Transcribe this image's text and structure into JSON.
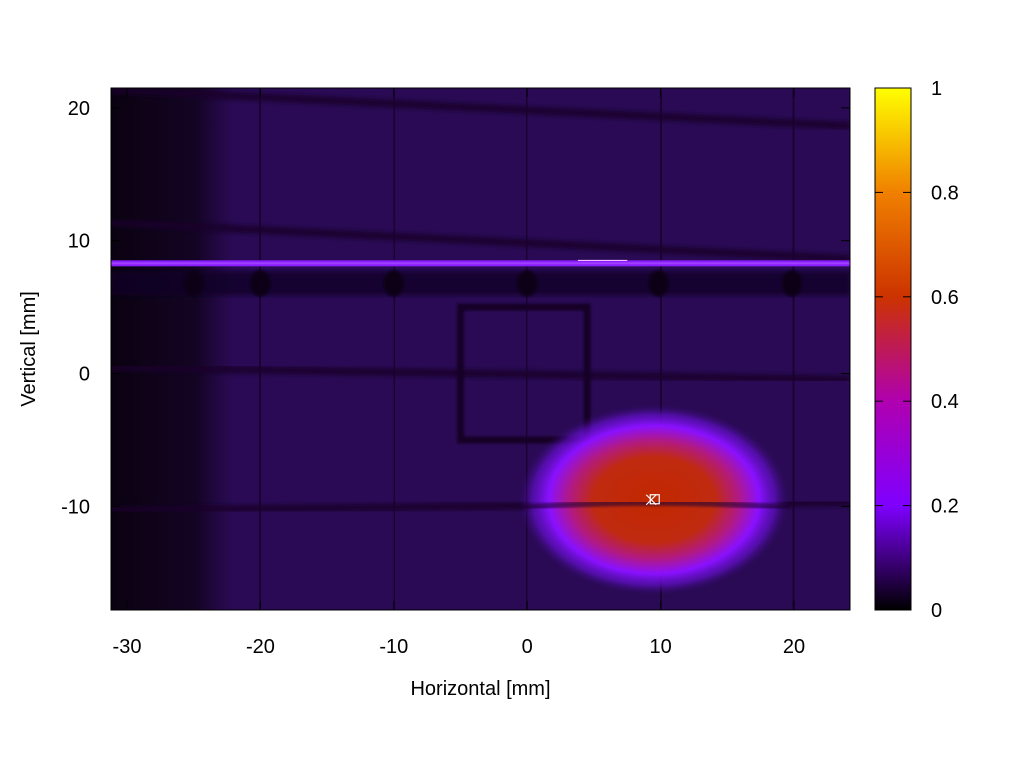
{
  "chart_data": {
    "type": "heatmap",
    "title": "",
    "xlabel": "Horizontal [mm]",
    "ylabel": "Vertical [mm]",
    "xlim": [
      -31.2,
      24.2
    ],
    "ylim": [
      -17.8,
      21.5
    ],
    "xticks": [
      {
        "value": -30,
        "label": "-30"
      },
      {
        "value": -20,
        "label": "-20"
      },
      {
        "value": -10,
        "label": "-10"
      },
      {
        "value": 0,
        "label": "0"
      },
      {
        "value": 10,
        "label": "10"
      },
      {
        "value": 20,
        "label": "20"
      }
    ],
    "yticks": [
      {
        "value": -10,
        "label": "-10"
      },
      {
        "value": 0,
        "label": "0"
      },
      {
        "value": 10,
        "label": "10"
      },
      {
        "value": 20,
        "label": "20"
      }
    ],
    "colorbar": {
      "range": [
        0,
        1
      ],
      "ticks": [
        {
          "value": 0,
          "label": "0"
        },
        {
          "value": 0.2,
          "label": "0.2"
        },
        {
          "value": 0.4,
          "label": "0.4"
        },
        {
          "value": 0.6,
          "label": "0.6"
        },
        {
          "value": 0.8,
          "label": "0.8"
        },
        {
          "value": 1,
          "label": "1"
        }
      ],
      "stops": [
        {
          "value": 0,
          "color": "#000000"
        },
        {
          "value": 0.2,
          "color": "#7f00ff"
        },
        {
          "value": 0.4,
          "color": "#b000b0"
        },
        {
          "value": 0.6,
          "color": "#cc3300"
        },
        {
          "value": 0.8,
          "color": "#f08000"
        },
        {
          "value": 1,
          "color": "#ffff00"
        }
      ]
    },
    "background_level": 0.1,
    "dark_left_region": {
      "x_max": -23.5,
      "level": 0.03
    },
    "beam_spot": {
      "x": 9.5,
      "y": -9.5,
      "peak": 0.55
    },
    "marker": {
      "x": 9.3,
      "y": -9.5
    },
    "bright_line": {
      "y": 8.3,
      "level": 0.22
    },
    "grid_lines": {
      "vertical_x": [
        -20,
        -10,
        0,
        10,
        20
      ],
      "horizontal_y": [
        20,
        10,
        0,
        -10
      ]
    },
    "square_outline": {
      "x0": -5,
      "x1": 4.5,
      "y0": -5,
      "y1": 5
    }
  }
}
